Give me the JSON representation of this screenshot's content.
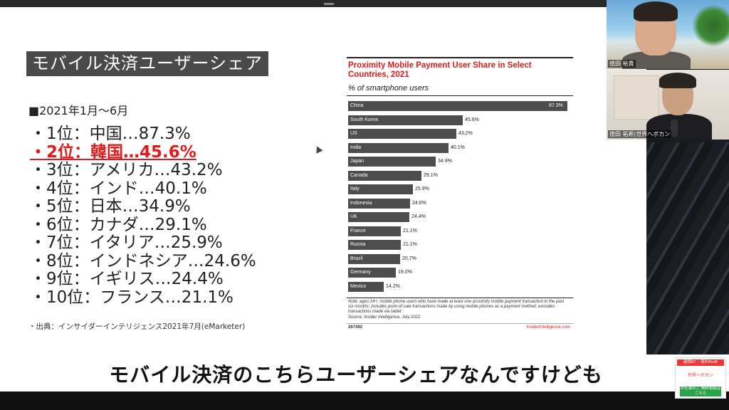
{
  "slide": {
    "title": "モバイル決済ユーザーシェア",
    "period": "■2021年1月〜6月",
    "ranks": [
      "・1位：中国…87.3%",
      "・2位：韓国…45.6%",
      "・3位：アメリカ…43.2%",
      "・4位：インド…40.1%",
      "・5位：日本…34.9%",
      "・6位：カナダ…29.1%",
      "・7位：イタリア…25.9%",
      "・8位：インドネシア…24.6%",
      "・9位：イギリス…24.4%",
      "・10位：フランス…21.1%"
    ],
    "highlight_index": 1,
    "highlight_color": "#e11b1b",
    "source": "・出典：インサイダーインテリジェンス2021年7月(eMarketer)"
  },
  "chart_data": {
    "type": "bar",
    "title": "Proximity Mobile Payment User Share in Select Countries, 2021",
    "subtitle": "% of smartphone users",
    "categories": [
      "China",
      "South Korea",
      "US",
      "India",
      "Japan",
      "Canada",
      "Italy",
      "Indonesia",
      "UK",
      "France",
      "Russia",
      "Brazil",
      "Germany",
      "Mexico"
    ],
    "values": [
      87.3,
      45.6,
      43.2,
      40.1,
      34.9,
      29.1,
      25.9,
      24.6,
      24.4,
      21.1,
      21.1,
      20.7,
      19.0,
      14.2
    ],
    "value_labels": [
      "87.3%",
      "45.6%",
      "43.2%",
      "40.1%",
      "34.9%",
      "29.1%",
      "25.9%",
      "24.6%",
      "24.4%",
      "21.1%",
      "21.1%",
      "20.7%",
      "19.0%",
      "14.2%"
    ],
    "xlim": [
      0,
      87.3
    ],
    "note": "Note: ages 14+; mobile phone users who have made at least one proximity mobile payment transaction in the past six months; includes point-of-sale transactions made by using mobile phones as a payment method; excludes transactions made via tablet",
    "source": "Source: Insider Intelligence, July 2021",
    "chart_id": "267492",
    "brand": "InsiderIntelligence.com",
    "title_color": "#e11b1b",
    "bar_color": "#4d4d4f"
  },
  "webcams": {
    "cam1_label": "徳田 裕貴",
    "cam2_label": "徳田 祐希|世界へボカン"
  },
  "caption": "モバイル決済のこちらユーザーシェアなんですけども",
  "badge": {
    "top": "越境EC・海外BtoB",
    "logo": "世界へボカン",
    "button": "お仕事のご 無料相談はこちら"
  }
}
